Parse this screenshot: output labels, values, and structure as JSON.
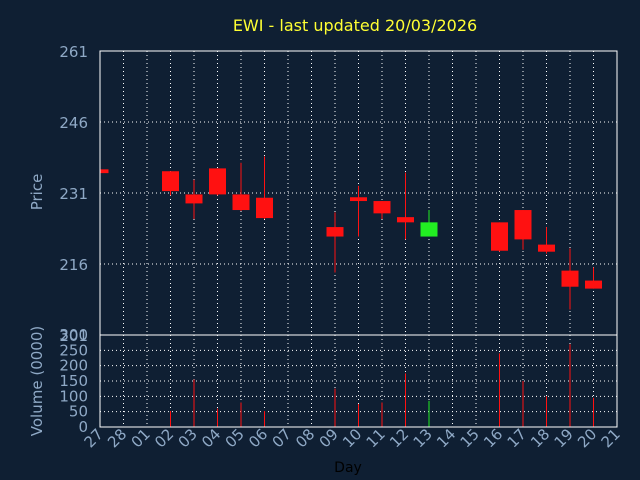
{
  "chart_data": {
    "type": "candlestick",
    "title": "EWI - last updated 20/03/2026",
    "price_panel": {
      "ylabel": "Price",
      "ylim": [
        201,
        261
      ],
      "yticks": [
        "261",
        "246",
        "231",
        "216",
        "201"
      ],
      "grid": true
    },
    "volume_panel": {
      "ylabel": "Volume (0000)",
      "ylim": [
        0,
        300
      ],
      "yticks": [
        "300",
        "250",
        "200",
        "150",
        "100",
        "50",
        "0"
      ],
      "grid": true
    },
    "xlabel": "Day",
    "x_ticks": [
      "27",
      "28",
      "01",
      "02",
      "03",
      "04",
      "05",
      "06",
      "07",
      "08",
      "09",
      "10",
      "11",
      "12",
      "13",
      "14",
      "15",
      "16",
      "17",
      "18",
      "19",
      "20",
      "21"
    ],
    "series": [
      {
        "day": "27",
        "open": 236,
        "high": 236.2,
        "low": 235.0,
        "close": 235.2,
        "volume": 0
      },
      {
        "day": "02",
        "open": 235.6,
        "high": 235.6,
        "low": 230.5,
        "close": 231.4,
        "volume": 52
      },
      {
        "day": "03",
        "open": 230.7,
        "high": 233.8,
        "low": 225.5,
        "close": 228.8,
        "volume": 155
      },
      {
        "day": "04",
        "open": 236.2,
        "high": 236.2,
        "low": 230.5,
        "close": 230.7,
        "volume": 60
      },
      {
        "day": "05",
        "open": 230.7,
        "high": 237.4,
        "low": 227.2,
        "close": 227.4,
        "volume": 80
      },
      {
        "day": "06",
        "open": 230.0,
        "high": 238.7,
        "low": 225.5,
        "close": 225.7,
        "volume": 52
      },
      {
        "day": "09",
        "open": 223.8,
        "high": 226.9,
        "low": 214.2,
        "close": 221.8,
        "volume": 125
      },
      {
        "day": "10",
        "open": 230.1,
        "high": 232.5,
        "low": 221.8,
        "close": 229.3,
        "volume": 75
      },
      {
        "day": "11",
        "open": 229.3,
        "high": 229.3,
        "low": 225.5,
        "close": 226.7,
        "volume": 80
      },
      {
        "day": "12",
        "open": 225.9,
        "high": 235.3,
        "low": 221.2,
        "close": 224.8,
        "volume": 175
      },
      {
        "day": "13",
        "open": 221.8,
        "high": 227.4,
        "low": 221.8,
        "close": 224.8,
        "volume": 85
      },
      {
        "day": "16",
        "open": 224.8,
        "high": 224.8,
        "low": 218.6,
        "close": 218.8,
        "volume": 240
      },
      {
        "day": "17",
        "open": 227.4,
        "high": 227.4,
        "low": 219.0,
        "close": 221.2,
        "volume": 150
      },
      {
        "day": "18",
        "open": 220.1,
        "high": 223.8,
        "low": 218.2,
        "close": 218.6,
        "volume": 100
      },
      {
        "day": "19",
        "open": 214.6,
        "high": 219.3,
        "low": 206.4,
        "close": 211.2,
        "volume": 270
      },
      {
        "day": "20",
        "open": 212.5,
        "high": 215.3,
        "low": 210.8,
        "close": 210.8,
        "volume": 95
      }
    ],
    "colors": {
      "background": "#0f1f33",
      "axis_text": "#8fa9c6",
      "title": "#ffff33",
      "up": "#22ee22",
      "down": "#ff1111",
      "grid": "#ffffff",
      "frame": "#ffffff"
    }
  }
}
